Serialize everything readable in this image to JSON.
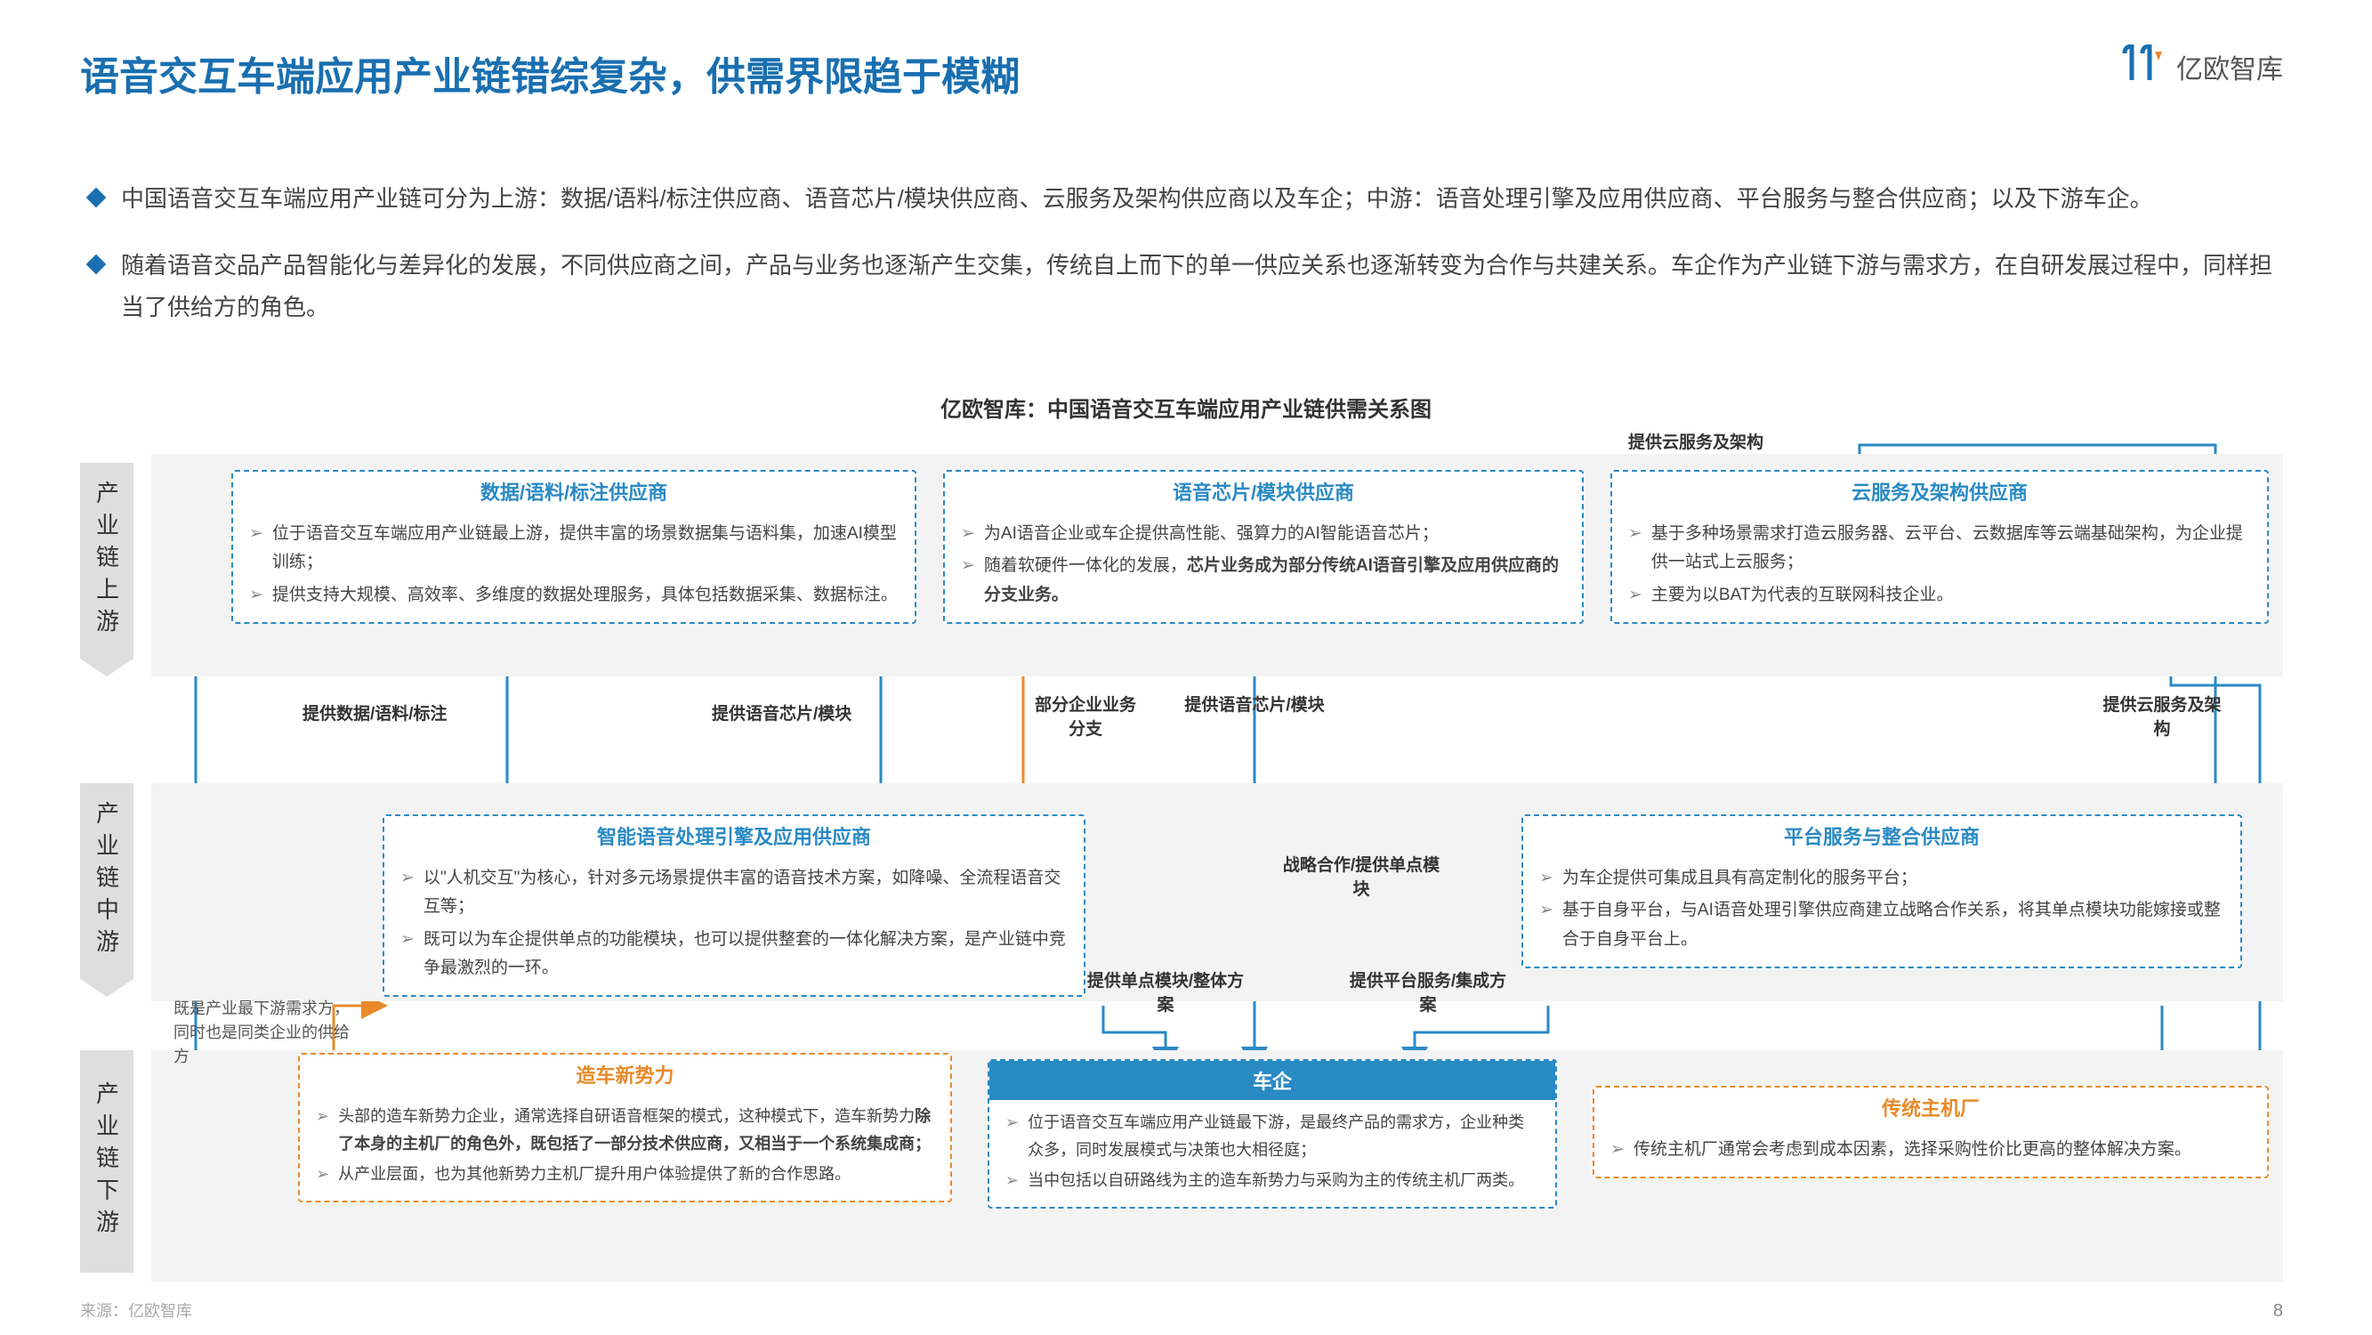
{
  "title": "语音交互车端应用产业链错综复杂，供需界限趋于模糊",
  "logo_text": "亿欧智库",
  "bullets": [
    "中国语音交互车端应用产业链可分为上游：数据/语料/标注供应商、语音芯片/模块供应商、云服务及架构供应商以及车企；中游：语音处理引擎及应用供应商、平台服务与整合供应商；以及下游车企。",
    "随着语音交品产品智能化与差异化的发展，不同供应商之间，产品与业务也逐渐产生交集，传统自上而下的单一供应关系也逐渐转变为合作与共建关系。车企作为产业链下游与需求方，在自研发展过程中，同样担当了供给方的角色。"
  ],
  "chart_title": "亿欧智库：中国语音交互车端应用产业链供需关系图",
  "side_labels": {
    "upstream": "产业链上游",
    "midstream": "产业链中游",
    "downstream": "产业链下游"
  },
  "colors": {
    "title_blue": "#1a6fb0",
    "box_blue": "#2a8ac4",
    "box_orange": "#e88a2a",
    "band_gray": "#f3f3f3",
    "side_gray": "#dedede",
    "arrow_blue": "#2a8ac4",
    "arrow_orange": "#e88a2a"
  },
  "boxes": {
    "data_supplier": {
      "title": "数据/语料/标注供应商",
      "items": [
        "位于语音交互车端应用产业链最上游，提供丰富的场景数据集与语料集，加速AI模型训练；",
        "提供支持大规模、高效率、多维度的数据处理服务，具体包括数据采集、数据标注。"
      ]
    },
    "chip_supplier": {
      "title": "语音芯片/模块供应商",
      "items": [
        "为AI语音企业或车企提供高性能、强算力的AI智能语音芯片；",
        "随着软硬件一体化的发展，<b>芯片业务成为部分传统AI语音引擎及应用供应商的分支业务。</b>"
      ]
    },
    "cloud_supplier": {
      "title": "云服务及架构供应商",
      "items": [
        "基于多种场景需求打造云服务器、云平台、云数据库等云端基础架构，为企业提供一站式上云服务；",
        "主要为以BAT为代表的互联网科技企业。"
      ]
    },
    "engine_supplier": {
      "title": "智能语音处理引擎及应用供应商",
      "items": [
        "以\"人机交互\"为核心，针对多元场景提供丰富的语音技术方案，如降噪、全流程语音交互等；",
        "既可以为车企提供单点的功能模块，也可以提供整套的一体化解决方案，是产业链中竞争最激烈的一环。"
      ]
    },
    "platform_supplier": {
      "title": "平台服务与整合供应商",
      "items": [
        "为车企提供可集成且具有高定制化的服务平台；",
        "基于自身平台，与AI语音处理引擎供应商建立战略合作关系，将其单点模块功能嫁接或整合于自身平台上。"
      ]
    },
    "new_force": {
      "title": "造车新势力",
      "items": [
        "头部的造车新势力企业，通常选择自研语音框架的模式，这种模式下，造车新势力<b>除了本身的主机厂的角色外，既包括了一部分技术供应商，又相当于一个系统集成商；</b>",
        "从产业层面，也为其他新势力主机厂提升用户体验提供了新的合作思路。"
      ]
    },
    "car_enterprise": {
      "title": "车企",
      "items": [
        "位于语音交互车端应用产业链最下游，是最终产品的需求方，企业种类众多，同时发展模式与决策也大相径庭；",
        "当中包括以自研路线为主的造车新势力与采购为主的传统主机厂两类。"
      ]
    },
    "traditional_oem": {
      "title": "传统主机厂",
      "items": [
        "传统主机厂通常会考虑到成本因素，选择采购性价比更高的整体解决方案。"
      ]
    }
  },
  "edge_labels": {
    "l1": "提供数据/语料/标注",
    "l2": "提供语音芯片/模块",
    "l3": "部分企业业务分支",
    "l4": "提供语音芯片/模块",
    "l5": "提供云服务及架构",
    "l6": "提供云服务及架构",
    "l7": "战略合作/提供单点模块",
    "l8": "提供单点模块/整体方案",
    "l9": "提供平台服务/集成方案"
  },
  "side_note": "既是产业最下游需求方，同时也是同类企业的供给方",
  "source": "来源：亿欧智库",
  "page_number": "8"
}
